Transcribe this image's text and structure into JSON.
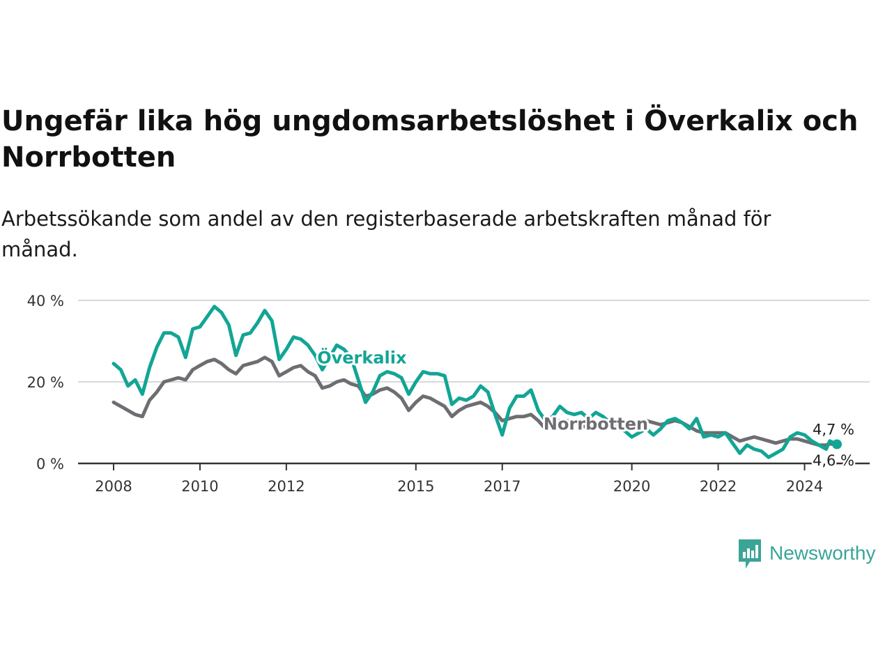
{
  "title": "Ungefär lika hög ungdomsarbetslöshet i Överkalix och Norrbotten",
  "subtitle": "Arbetssökande som andel av den registerbaserade arbetskraften månad för månad.",
  "brand": "Newsworthy",
  "colors": {
    "overkalix": "#12a595",
    "norrbotten": "#6e6d72",
    "grid": "#d9d9d9",
    "axis": "#333333",
    "brand": "#3aa597"
  },
  "chart_data": {
    "type": "line",
    "title": "Ungefär lika hög ungdomsarbetslöshet i Överkalix och Norrbotten",
    "xlabel": "",
    "ylabel": "",
    "xlim": [
      "2008-01",
      "2024-10"
    ],
    "ylim": [
      0,
      40
    ],
    "y_ticks": [
      0,
      20,
      40
    ],
    "y_tick_labels": [
      "0 %",
      "20 %",
      "40 %"
    ],
    "x_ticks": [
      2008,
      2010,
      2012,
      2015,
      2017,
      2020,
      2022,
      2024
    ],
    "x_tick_labels": [
      "2008",
      "2010",
      "2012",
      "2015",
      "2017",
      "2020",
      "2022",
      "2024"
    ],
    "grid": "horizontal",
    "legend": "inline labels",
    "series": [
      {
        "name": "Överkalix",
        "color": "#12a595",
        "end_label": "4,7 %",
        "points": [
          [
            "2008-01",
            24.5
          ],
          [
            "2008-03",
            23.0
          ],
          [
            "2008-05",
            19.0
          ],
          [
            "2008-07",
            20.5
          ],
          [
            "2008-09",
            17.0
          ],
          [
            "2008-11",
            23.5
          ],
          [
            "2009-01",
            28.5
          ],
          [
            "2009-03",
            32.0
          ],
          [
            "2009-05",
            32.0
          ],
          [
            "2009-07",
            31.0
          ],
          [
            "2009-09",
            26.0
          ],
          [
            "2009-11",
            33.0
          ],
          [
            "2010-01",
            33.5
          ],
          [
            "2010-03",
            36.0
          ],
          [
            "2010-05",
            38.5
          ],
          [
            "2010-07",
            37.0
          ],
          [
            "2010-09",
            34.0
          ],
          [
            "2010-11",
            26.5
          ],
          [
            "2011-01",
            31.5
          ],
          [
            "2011-03",
            32.0
          ],
          [
            "2011-05",
            34.5
          ],
          [
            "2011-07",
            37.5
          ],
          [
            "2011-09",
            35.0
          ],
          [
            "2011-11",
            25.5
          ],
          [
            "2012-01",
            28.0
          ],
          [
            "2012-03",
            31.0
          ],
          [
            "2012-05",
            30.5
          ],
          [
            "2012-07",
            29.0
          ],
          [
            "2012-09",
            26.5
          ],
          [
            "2012-11",
            23.0
          ],
          [
            "2013-01",
            26.0
          ],
          [
            "2013-03",
            29.0
          ],
          [
            "2013-05",
            28.0
          ],
          [
            "2013-07",
            26.0
          ],
          [
            "2013-09",
            20.5
          ],
          [
            "2013-11",
            15.0
          ],
          [
            "2014-01",
            17.5
          ],
          [
            "2014-03",
            21.5
          ],
          [
            "2014-05",
            22.5
          ],
          [
            "2014-07",
            22.0
          ],
          [
            "2014-09",
            21.0
          ],
          [
            "2014-11",
            17.0
          ],
          [
            "2015-01",
            20.0
          ],
          [
            "2015-03",
            22.5
          ],
          [
            "2015-05",
            22.0
          ],
          [
            "2015-07",
            22.0
          ],
          [
            "2015-09",
            21.5
          ],
          [
            "2015-11",
            14.5
          ],
          [
            "2016-01",
            16.0
          ],
          [
            "2016-03",
            15.5
          ],
          [
            "2016-05",
            16.5
          ],
          [
            "2016-07",
            19.0
          ],
          [
            "2016-09",
            17.5
          ],
          [
            "2016-11",
            12.0
          ],
          [
            "2017-01",
            7.0
          ],
          [
            "2017-03",
            13.5
          ],
          [
            "2017-05",
            16.5
          ],
          [
            "2017-07",
            16.5
          ],
          [
            "2017-09",
            18.0
          ],
          [
            "2017-11",
            13.0
          ],
          [
            "2018-01",
            10.5
          ],
          [
            "2018-03",
            11.5
          ],
          [
            "2018-05",
            14.0
          ],
          [
            "2018-07",
            12.5
          ],
          [
            "2018-09",
            12.0
          ],
          [
            "2018-11",
            12.5
          ],
          [
            "2019-01",
            11.0
          ],
          [
            "2019-03",
            12.5
          ],
          [
            "2019-05",
            11.5
          ],
          [
            "2019-07",
            10.0
          ],
          [
            "2019-09",
            10.5
          ],
          [
            "2019-11",
            8.0
          ],
          [
            "2020-01",
            6.5
          ],
          [
            "2020-03",
            7.5
          ],
          [
            "2020-05",
            8.5
          ],
          [
            "2020-07",
            7.0
          ],
          [
            "2020-09",
            8.5
          ],
          [
            "2020-11",
            10.5
          ],
          [
            "2021-01",
            11.0
          ],
          [
            "2021-03",
            10.0
          ],
          [
            "2021-05",
            8.5
          ],
          [
            "2021-07",
            11.0
          ],
          [
            "2021-09",
            6.5
          ],
          [
            "2021-11",
            7.0
          ],
          [
            "2022-01",
            6.5
          ],
          [
            "2022-03",
            7.5
          ],
          [
            "2022-05",
            5.0
          ],
          [
            "2022-07",
            2.5
          ],
          [
            "2022-09",
            4.5
          ],
          [
            "2022-11",
            3.5
          ],
          [
            "2023-01",
            3.0
          ],
          [
            "2023-03",
            1.5
          ],
          [
            "2023-05",
            2.5
          ],
          [
            "2023-07",
            3.5
          ],
          [
            "2023-09",
            6.5
          ],
          [
            "2023-11",
            7.5
          ],
          [
            "2024-01",
            7.0
          ],
          [
            "2024-03",
            5.5
          ],
          [
            "2024-05",
            4.5
          ],
          [
            "2024-07",
            3.5
          ],
          [
            "2024-08",
            5.5
          ],
          [
            "2024-10",
            4.7
          ]
        ]
      },
      {
        "name": "Norrbotten",
        "color": "#6e6d72",
        "end_label": "4,6 %",
        "points": [
          [
            "2008-01",
            15.0
          ],
          [
            "2008-03",
            14.0
          ],
          [
            "2008-05",
            13.0
          ],
          [
            "2008-07",
            12.0
          ],
          [
            "2008-09",
            11.5
          ],
          [
            "2008-11",
            15.5
          ],
          [
            "2009-01",
            17.5
          ],
          [
            "2009-03",
            20.0
          ],
          [
            "2009-05",
            20.5
          ],
          [
            "2009-07",
            21.0
          ],
          [
            "2009-09",
            20.5
          ],
          [
            "2009-11",
            23.0
          ],
          [
            "2010-01",
            24.0
          ],
          [
            "2010-03",
            25.0
          ],
          [
            "2010-05",
            25.5
          ],
          [
            "2010-07",
            24.5
          ],
          [
            "2010-09",
            23.0
          ],
          [
            "2010-11",
            22.0
          ],
          [
            "2011-01",
            24.0
          ],
          [
            "2011-03",
            24.5
          ],
          [
            "2011-05",
            25.0
          ],
          [
            "2011-07",
            26.0
          ],
          [
            "2011-09",
            25.0
          ],
          [
            "2011-11",
            21.5
          ],
          [
            "2012-01",
            22.5
          ],
          [
            "2012-03",
            23.5
          ],
          [
            "2012-05",
            24.0
          ],
          [
            "2012-07",
            22.5
          ],
          [
            "2012-09",
            21.5
          ],
          [
            "2012-11",
            18.5
          ],
          [
            "2013-01",
            19.0
          ],
          [
            "2013-03",
            20.0
          ],
          [
            "2013-05",
            20.5
          ],
          [
            "2013-07",
            19.5
          ],
          [
            "2013-09",
            19.0
          ],
          [
            "2013-11",
            16.5
          ],
          [
            "2014-01",
            17.0
          ],
          [
            "2014-03",
            18.0
          ],
          [
            "2014-05",
            18.5
          ],
          [
            "2014-07",
            17.5
          ],
          [
            "2014-09",
            16.0
          ],
          [
            "2014-11",
            13.0
          ],
          [
            "2015-01",
            15.0
          ],
          [
            "2015-03",
            16.5
          ],
          [
            "2015-05",
            16.0
          ],
          [
            "2015-07",
            15.0
          ],
          [
            "2015-09",
            14.0
          ],
          [
            "2015-11",
            11.5
          ],
          [
            "2016-01",
            13.0
          ],
          [
            "2016-03",
            14.0
          ],
          [
            "2016-05",
            14.5
          ],
          [
            "2016-07",
            15.0
          ],
          [
            "2016-09",
            14.0
          ],
          [
            "2016-11",
            12.5
          ],
          [
            "2017-01",
            10.5
          ],
          [
            "2017-03",
            11.0
          ],
          [
            "2017-05",
            11.5
          ],
          [
            "2017-07",
            11.5
          ],
          [
            "2017-09",
            12.0
          ],
          [
            "2017-11",
            10.5
          ],
          [
            "2018-01",
            8.5
          ],
          [
            "2018-03",
            9.5
          ],
          [
            "2018-05",
            10.5
          ],
          [
            "2018-07",
            10.5
          ],
          [
            "2018-09",
            10.0
          ],
          [
            "2018-11",
            9.5
          ],
          [
            "2019-01",
            8.5
          ],
          [
            "2019-03",
            9.0
          ],
          [
            "2019-05",
            9.5
          ],
          [
            "2019-07",
            9.0
          ],
          [
            "2019-09",
            9.0
          ],
          [
            "2019-11",
            8.0
          ],
          [
            "2020-01",
            8.5
          ],
          [
            "2020-03",
            9.5
          ],
          [
            "2020-05",
            10.5
          ],
          [
            "2020-07",
            10.0
          ],
          [
            "2020-09",
            9.5
          ],
          [
            "2020-11",
            10.0
          ],
          [
            "2021-01",
            10.5
          ],
          [
            "2021-03",
            10.0
          ],
          [
            "2021-05",
            9.0
          ],
          [
            "2021-07",
            8.0
          ],
          [
            "2021-09",
            7.5
          ],
          [
            "2021-11",
            7.5
          ],
          [
            "2022-01",
            7.5
          ],
          [
            "2022-03",
            7.5
          ],
          [
            "2022-05",
            6.5
          ],
          [
            "2022-07",
            5.5
          ],
          [
            "2022-09",
            6.0
          ],
          [
            "2022-11",
            6.5
          ],
          [
            "2023-01",
            6.0
          ],
          [
            "2023-03",
            5.5
          ],
          [
            "2023-05",
            5.0
          ],
          [
            "2023-07",
            5.5
          ],
          [
            "2023-09",
            6.0
          ],
          [
            "2023-11",
            6.0
          ],
          [
            "2024-01",
            5.5
          ],
          [
            "2024-03",
            5.0
          ],
          [
            "2024-05",
            4.5
          ],
          [
            "2024-07",
            4.5
          ],
          [
            "2024-08",
            4.8
          ],
          [
            "2024-10",
            4.6
          ]
        ]
      }
    ],
    "annotations": [
      {
        "text": "Överkalix",
        "series": "Överkalix",
        "at": "2013-10"
      },
      {
        "text": "Norrbotten",
        "series": "Norrbotten",
        "at": "2019-03"
      }
    ]
  }
}
